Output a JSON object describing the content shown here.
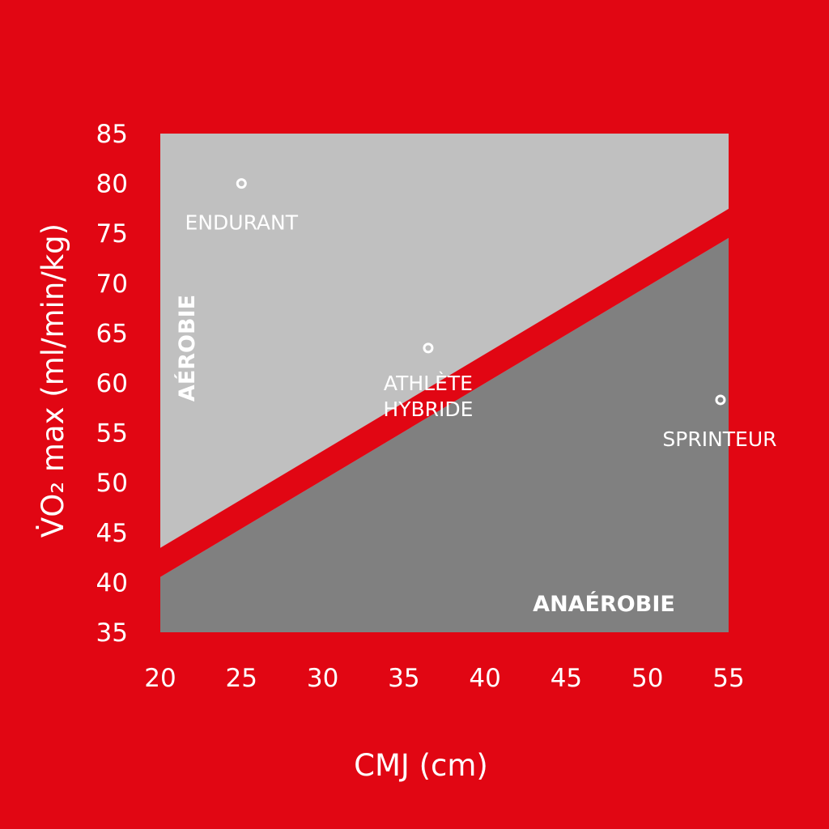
{
  "colors": {
    "background": "#e10613",
    "aerobic_zone": "#c0c0c0",
    "anaerobic_zone": "#808080",
    "boundary_band": "#e10613",
    "text": "#ffffff"
  },
  "chart_data": {
    "type": "scatter",
    "xlabel": "CMJ (cm)",
    "ylabel": "V̇O₂ max (ml/min/kg)",
    "xlim": [
      20,
      55
    ],
    "ylim": [
      35,
      85
    ],
    "x_ticks": [
      "20",
      "25",
      "30",
      "35",
      "40",
      "45",
      "50",
      "55"
    ],
    "y_ticks": [
      "85",
      "80",
      "75",
      "70",
      "65",
      "60",
      "55",
      "50",
      "45",
      "40",
      "35"
    ],
    "grid": false,
    "points": [
      {
        "x": 25,
        "y": 80,
        "label": "ENDURANT"
      },
      {
        "x": 36.5,
        "y": 63.5,
        "label": "ATHLÈTE HYBRIDE"
      },
      {
        "x": 54.5,
        "y": 58.3,
        "label": "SPRINTEUR"
      }
    ],
    "boundary_line": {
      "start": [
        20,
        42
      ],
      "end": [
        55,
        76
      ]
    },
    "regions": [
      {
        "label": "AÉROBIE",
        "side": "above boundary"
      },
      {
        "label": "ANAÉROBIE",
        "side": "below boundary"
      }
    ]
  }
}
